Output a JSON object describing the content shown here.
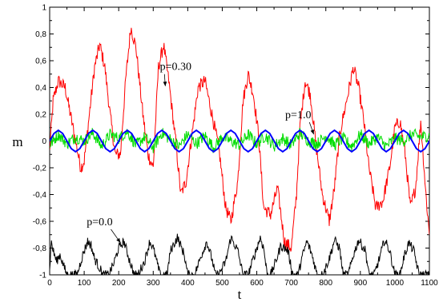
{
  "chart_data": {
    "type": "line",
    "xlabel": "t",
    "ylabel": "m",
    "xlim": [
      0,
      1100
    ],
    "ylim": [
      -1,
      1
    ],
    "x_ticks": [
      0,
      100,
      200,
      300,
      400,
      500,
      600,
      700,
      800,
      900,
      1000,
      1100
    ],
    "x_tick_labels": [
      "0",
      "100",
      "200",
      "300",
      "400",
      "500",
      "600",
      "700",
      "800",
      "900",
      "1000",
      "1100"
    ],
    "y_ticks": [
      -1,
      -0.8,
      -0.6,
      -0.4,
      -0.2,
      0,
      0.2,
      0.4,
      0.6,
      0.8,
      1
    ],
    "y_tick_labels": [
      "-1",
      "-0,8",
      "-0,6",
      "-0,4",
      "-0,2",
      "0",
      "0,2",
      "0,4",
      "0,6",
      "0,8",
      "1"
    ],
    "grid": false,
    "legend": "none",
    "series": [
      {
        "color": "#ff0000",
        "x": [
          0,
          10,
          25,
          45,
          60,
          75,
          90,
          100,
          115,
          130,
          145,
          160,
          175,
          190,
          205,
          220,
          235,
          250,
          270,
          285,
          300,
          315,
          330,
          345,
          365,
          380,
          395,
          410,
          430,
          450,
          470,
          490,
          510,
          525,
          545,
          560,
          575,
          590,
          605,
          620,
          640,
          660,
          680,
          700,
          715,
          725,
          740,
          755,
          770,
          790,
          810,
          825,
          840,
          860,
          880,
          895,
          910,
          925,
          945,
          965,
          985,
          1000,
          1015,
          1030,
          1045,
          1060,
          1075,
          1090,
          1100
        ],
        "y": [
          -0.08,
          0.3,
          0.45,
          0.4,
          0.2,
          0.0,
          -0.2,
          -0.15,
          0.2,
          0.55,
          0.72,
          0.55,
          0.2,
          -0.1,
          -0.1,
          0.45,
          0.85,
          0.7,
          0.2,
          -0.1,
          -0.2,
          0.55,
          0.72,
          0.45,
          0.0,
          -0.4,
          -0.3,
          0.0,
          0.4,
          0.45,
          0.2,
          -0.05,
          -0.5,
          -0.6,
          -0.3,
          0.3,
          0.5,
          0.35,
          0.05,
          -0.5,
          -0.55,
          -0.35,
          -0.75,
          -0.8,
          -0.4,
          0.1,
          0.45,
          0.35,
          0.0,
          -0.4,
          -0.6,
          -0.35,
          0.05,
          0.3,
          0.55,
          0.4,
          0.15,
          -0.2,
          -0.5,
          -0.45,
          -0.2,
          0.1,
          0.15,
          -0.1,
          -0.5,
          -0.35,
          0.15,
          -0.4,
          -0.7
        ],
        "jitter": 0.05
      },
      {
        "color": "#00dd00",
        "x": [
          0,
          25,
          50,
          75,
          100,
          125,
          150,
          175,
          200,
          225,
          250,
          275,
          300,
          325,
          350,
          375,
          400,
          425,
          450,
          475,
          500,
          525,
          550,
          575,
          600,
          625,
          650,
          675,
          700,
          725,
          750,
          775,
          800,
          825,
          850,
          875,
          900,
          925,
          950,
          975,
          1000,
          1025,
          1050,
          1075,
          1100
        ],
        "y": [
          -0.03,
          0.05,
          -0.02,
          0.03,
          0.0,
          0.06,
          -0.04,
          0.05,
          0.02,
          0.07,
          -0.03,
          0.03,
          -0.05,
          0.06,
          0.01,
          -0.04,
          0.05,
          -0.02,
          0.04,
          -0.05,
          0.03,
          0.0,
          -0.03,
          0.05,
          -0.02,
          0.04,
          -0.04,
          0.02,
          -0.03,
          0.06,
          0.0,
          -0.02,
          0.04,
          -0.03,
          0.02,
          -0.04,
          0.05,
          -0.02,
          0.03,
          -0.04,
          0.02,
          0.0,
          0.05,
          0.03,
          0.04
        ],
        "jitter": 0.045
      },
      {
        "color": "#0000ff",
        "x": [
          0,
          12.5,
          25,
          37.5,
          50,
          62.5,
          75,
          87.5,
          100,
          112.5,
          125,
          137.5,
          150,
          162.5,
          175,
          187.5,
          200,
          212.5,
          225,
          237.5,
          250,
          262.5,
          275,
          287.5,
          300,
          312.5,
          325,
          337.5,
          350,
          362.5,
          375,
          387.5,
          400,
          412.5,
          425,
          437.5,
          450,
          462.5,
          475,
          487.5,
          500,
          512.5,
          525,
          537.5,
          550,
          562.5,
          575,
          587.5,
          600,
          612.5,
          625,
          637.5,
          650,
          662.5,
          675,
          687.5,
          700,
          712.5,
          725,
          737.5,
          750,
          762.5,
          775,
          787.5,
          800,
          812.5,
          825,
          837.5,
          850,
          862.5,
          875,
          887.5,
          900,
          912.5,
          925,
          937.5,
          950,
          962.5,
          975,
          987.5,
          1000,
          1012.5,
          1025,
          1037.5,
          1050,
          1062.5,
          1075,
          1087.5,
          1100
        ],
        "y": [
          0.0,
          0.057,
          0.08,
          0.057,
          0.0,
          -0.057,
          -0.08,
          -0.057,
          0.0,
          0.057,
          0.08,
          0.057,
          0.0,
          -0.057,
          -0.08,
          -0.057,
          0.0,
          0.057,
          0.08,
          0.057,
          0.0,
          -0.057,
          -0.08,
          -0.057,
          0.0,
          0.057,
          0.08,
          0.057,
          0.0,
          -0.057,
          -0.08,
          -0.057,
          0.0,
          0.057,
          0.08,
          0.057,
          0.0,
          -0.057,
          -0.08,
          -0.057,
          0.0,
          0.057,
          0.08,
          0.057,
          0.0,
          -0.057,
          -0.08,
          -0.057,
          0.0,
          0.057,
          0.08,
          0.057,
          0.0,
          -0.057,
          -0.08,
          -0.057,
          0.0,
          0.057,
          0.08,
          0.057,
          0.0,
          -0.057,
          -0.08,
          -0.057,
          0.0,
          0.057,
          0.08,
          0.057,
          0.0,
          -0.057,
          -0.08,
          -0.057,
          0.0,
          0.057,
          0.08,
          0.057,
          0.0,
          -0.057,
          -0.08,
          -0.057,
          0.0,
          0.057,
          0.08,
          0.057,
          0.0,
          -0.057,
          -0.08,
          -0.057,
          0.0
        ],
        "jitter": 0
      },
      {
        "color": "#000000",
        "x": [
          0,
          5,
          10,
          20,
          30,
          40,
          50,
          55,
          60,
          70,
          80,
          90,
          100,
          110,
          120,
          130,
          145,
          155,
          170,
          185,
          200,
          215,
          230,
          245,
          255,
          275,
          290,
          300,
          320,
          340,
          350,
          370,
          390,
          400,
          420,
          440,
          455,
          470,
          480,
          490,
          510,
          525,
          545,
          560,
          575,
          590,
          610,
          620,
          630,
          640,
          655,
          670,
          690,
          705,
          720,
          730,
          745,
          760,
          775,
          790,
          810,
          825,
          840,
          850,
          865,
          880,
          895,
          915,
          925,
          940,
          955,
          970,
          985,
          1000,
          1015,
          1025,
          1040,
          1055,
          1070,
          1085,
          1100
        ],
        "y": [
          -0.95,
          -0.75,
          -0.82,
          -0.9,
          -0.85,
          -0.93,
          -1.0,
          -1.0,
          -1.0,
          -1.0,
          -1.0,
          -0.9,
          -0.82,
          -0.75,
          -0.78,
          -0.88,
          -0.95,
          -1.0,
          -1.0,
          -0.92,
          -0.8,
          -0.75,
          -0.88,
          -1.0,
          -1.0,
          -0.9,
          -0.75,
          -0.8,
          -1.0,
          -1.0,
          -0.82,
          -0.72,
          -0.85,
          -1.0,
          -1.0,
          -0.85,
          -0.75,
          -0.88,
          -1.0,
          -1.0,
          -0.9,
          -0.72,
          -0.82,
          -1.0,
          -1.0,
          -0.88,
          -0.72,
          -0.8,
          -1.0,
          -1.0,
          -0.9,
          -0.78,
          -0.82,
          -1.0,
          -1.0,
          -0.88,
          -0.75,
          -0.85,
          -1.0,
          -1.0,
          -0.88,
          -0.74,
          -0.8,
          -1.0,
          -1.0,
          -0.85,
          -0.74,
          -0.82,
          -1.0,
          -1.0,
          -0.88,
          -0.74,
          -0.82,
          -1.0,
          -1.0,
          -0.88,
          -0.76,
          -0.82,
          -1.0,
          -1.0,
          -1.0
        ],
        "jitter": 0.035
      }
    ],
    "annotations": [
      {
        "text": "p=0.30",
        "x": 365,
        "y": 0.53,
        "arrow_to": [
          335,
          0.41
        ]
      },
      {
        "text": "p=1.0",
        "x": 720,
        "y": 0.17,
        "arrow_to": [
          765,
          0.05
        ]
      },
      {
        "text": "p=0.0",
        "x": 145,
        "y": -0.63,
        "arrow_to": [
          205,
          -0.76
        ]
      }
    ]
  }
}
